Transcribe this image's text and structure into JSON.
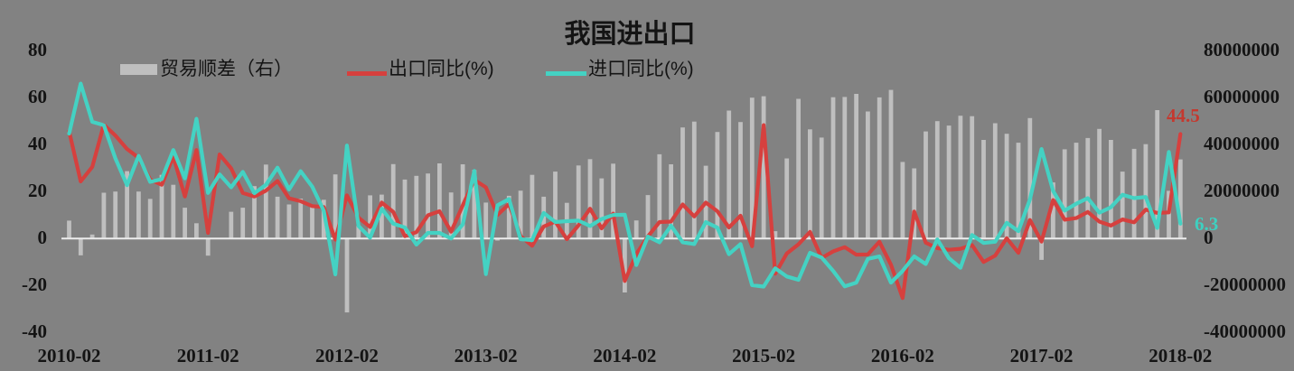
{
  "title": "我国进出口",
  "annotations": [
    {
      "text": "44.5",
      "series": "出口同比(%)",
      "color": "#c4392f"
    },
    {
      "text": "6.3",
      "series": "进口同比(%)",
      "color": "#3ed0c0"
    }
  ],
  "colors": {
    "background": "#828282",
    "bar": "#bfbfbf",
    "export_line": "#d6403e",
    "import_line": "#44d2c3",
    "zero_line": "#ececec",
    "text": "#141414"
  },
  "chart_data": {
    "type": "combo",
    "title": "我国进出口",
    "n_points": 97,
    "x_start": "2010-02",
    "x_end": "2018-02",
    "x_tick_labels": [
      "2010-02",
      "2011-02",
      "2012-02",
      "2013-02",
      "2014-02",
      "2015-02",
      "2016-02",
      "2017-02",
      "2018-02"
    ],
    "x_tick_every": 12,
    "left_axis": {
      "ticks": [
        80,
        60,
        40,
        20,
        0,
        -20,
        -40
      ],
      "min": -40,
      "max": 80
    },
    "right_axis": {
      "ticks": [
        "80000000",
        "60000000",
        "40000000",
        "20000000",
        "0",
        "-20000000",
        "-40000000"
      ],
      "min": -40000000,
      "max": 80000000
    },
    "legend_position": "top",
    "grid": false,
    "series": [
      {
        "name": "贸易顺差（右）",
        "type": "bar",
        "axis": "right",
        "color": "#bfbfbf",
        "values": [
          7600000,
          -7200000,
          1700000,
          19500000,
          20000000,
          28700000,
          20000000,
          16900000,
          27100000,
          22900000,
          13100000,
          6500000,
          -7300000,
          100000,
          11400000,
          13100000,
          22300000,
          31500000,
          17800000,
          14500000,
          17000000,
          14500000,
          16500000,
          27300000,
          -31500000,
          5400000,
          18400000,
          18700000,
          31700000,
          25100000,
          26700000,
          27700000,
          32000000,
          19600000,
          31600000,
          29200000,
          15300000,
          -900000,
          18200000,
          20400000,
          27100000,
          17800000,
          28500000,
          15200000,
          31100000,
          33800000,
          25600000,
          31900000,
          -23000000,
          7700000,
          18500000,
          35900000,
          31600000,
          47300000,
          49800000,
          31000000,
          45400000,
          54500000,
          49600000,
          60000000,
          60600000,
          3100000,
          34100000,
          59500000,
          46500000,
          43000000,
          60200000,
          60300000,
          61600000,
          54100000,
          60100000,
          63300000,
          32600000,
          29900000,
          45600000,
          50000000,
          48100000,
          52300000,
          52100000,
          42000000,
          49100000,
          44600000,
          40800000,
          51300000,
          -9100000,
          23900000,
          38000000,
          40800000,
          42800000,
          46700000,
          42000000,
          28500000,
          38200000,
          40200000,
          54700000,
          20300000,
          33700000
        ]
      },
      {
        "name": "出口同比(%)",
        "type": "line",
        "axis": "left",
        "color": "#d6403e",
        "values": [
          45.7,
          24.3,
          30.5,
          48.5,
          43.9,
          38.1,
          34.4,
          25.1,
          22.9,
          34.9,
          17.9,
          37.7,
          2.4,
          35.8,
          29.9,
          19.4,
          17.9,
          20.4,
          24.5,
          17.1,
          15.9,
          13.8,
          13.4,
          -0.5,
          18.4,
          8.9,
          4.9,
          15.3,
          11.3,
          1.0,
          2.7,
          9.9,
          11.6,
          2.9,
          14.1,
          25.0,
          21.8,
          10.0,
          14.7,
          1.0,
          -3.1,
          5.1,
          7.2,
          -0.3,
          5.6,
          12.7,
          4.3,
          10.6,
          -18.1,
          -6.6,
          0.9,
          7.0,
          7.2,
          14.5,
          9.4,
          15.3,
          11.6,
          4.7,
          9.7,
          -3.3,
          48.3,
          -15.0,
          -6.4,
          -2.5,
          2.8,
          -8.3,
          -5.5,
          -3.7,
          -6.9,
          -6.8,
          -1.4,
          -11.2,
          -25.4,
          11.5,
          -1.8,
          -4.1,
          -4.8,
          -4.4,
          -2.8,
          -10.0,
          -7.3,
          0.1,
          -6.1,
          7.9,
          -1.3,
          16.4,
          8.0,
          8.7,
          11.3,
          7.2,
          5.5,
          8.1,
          6.9,
          12.3,
          10.9,
          11.1,
          44.5
        ]
      },
      {
        "name": "进口同比(%)",
        "type": "line",
        "axis": "left",
        "color": "#44d2c3",
        "values": [
          44.7,
          66.0,
          49.7,
          48.3,
          34.1,
          22.7,
          35.2,
          24.1,
          25.3,
          37.7,
          25.6,
          51.0,
          19.4,
          27.3,
          21.8,
          28.4,
          19.3,
          22.9,
          30.2,
          20.9,
          28.7,
          22.1,
          11.8,
          -15.3,
          39.6,
          5.3,
          0.3,
          12.7,
          6.3,
          4.7,
          -2.6,
          2.4,
          2.4,
          0.0,
          6.0,
          28.8,
          -15.2,
          14.1,
          16.8,
          -0.3,
          -0.7,
          10.9,
          7.0,
          7.4,
          7.6,
          5.3,
          8.3,
          10.0,
          10.1,
          -11.3,
          0.8,
          -1.6,
          5.5,
          -1.6,
          -2.4,
          7.0,
          4.6,
          -6.7,
          -2.4,
          -19.9,
          -20.5,
          -12.7,
          -16.2,
          -17.6,
          -6.1,
          -8.1,
          -13.8,
          -20.4,
          -18.8,
          -8.7,
          -7.6,
          -18.8,
          -13.8,
          -7.6,
          -10.9,
          -0.4,
          -8.4,
          -12.5,
          1.5,
          -1.9,
          -1.4,
          6.7,
          3.1,
          16.7,
          38.1,
          20.3,
          11.9,
          14.8,
          17.2,
          11.0,
          13.3,
          18.6,
          17.2,
          17.7,
          4.5,
          36.9,
          6.3
        ]
      }
    ]
  }
}
